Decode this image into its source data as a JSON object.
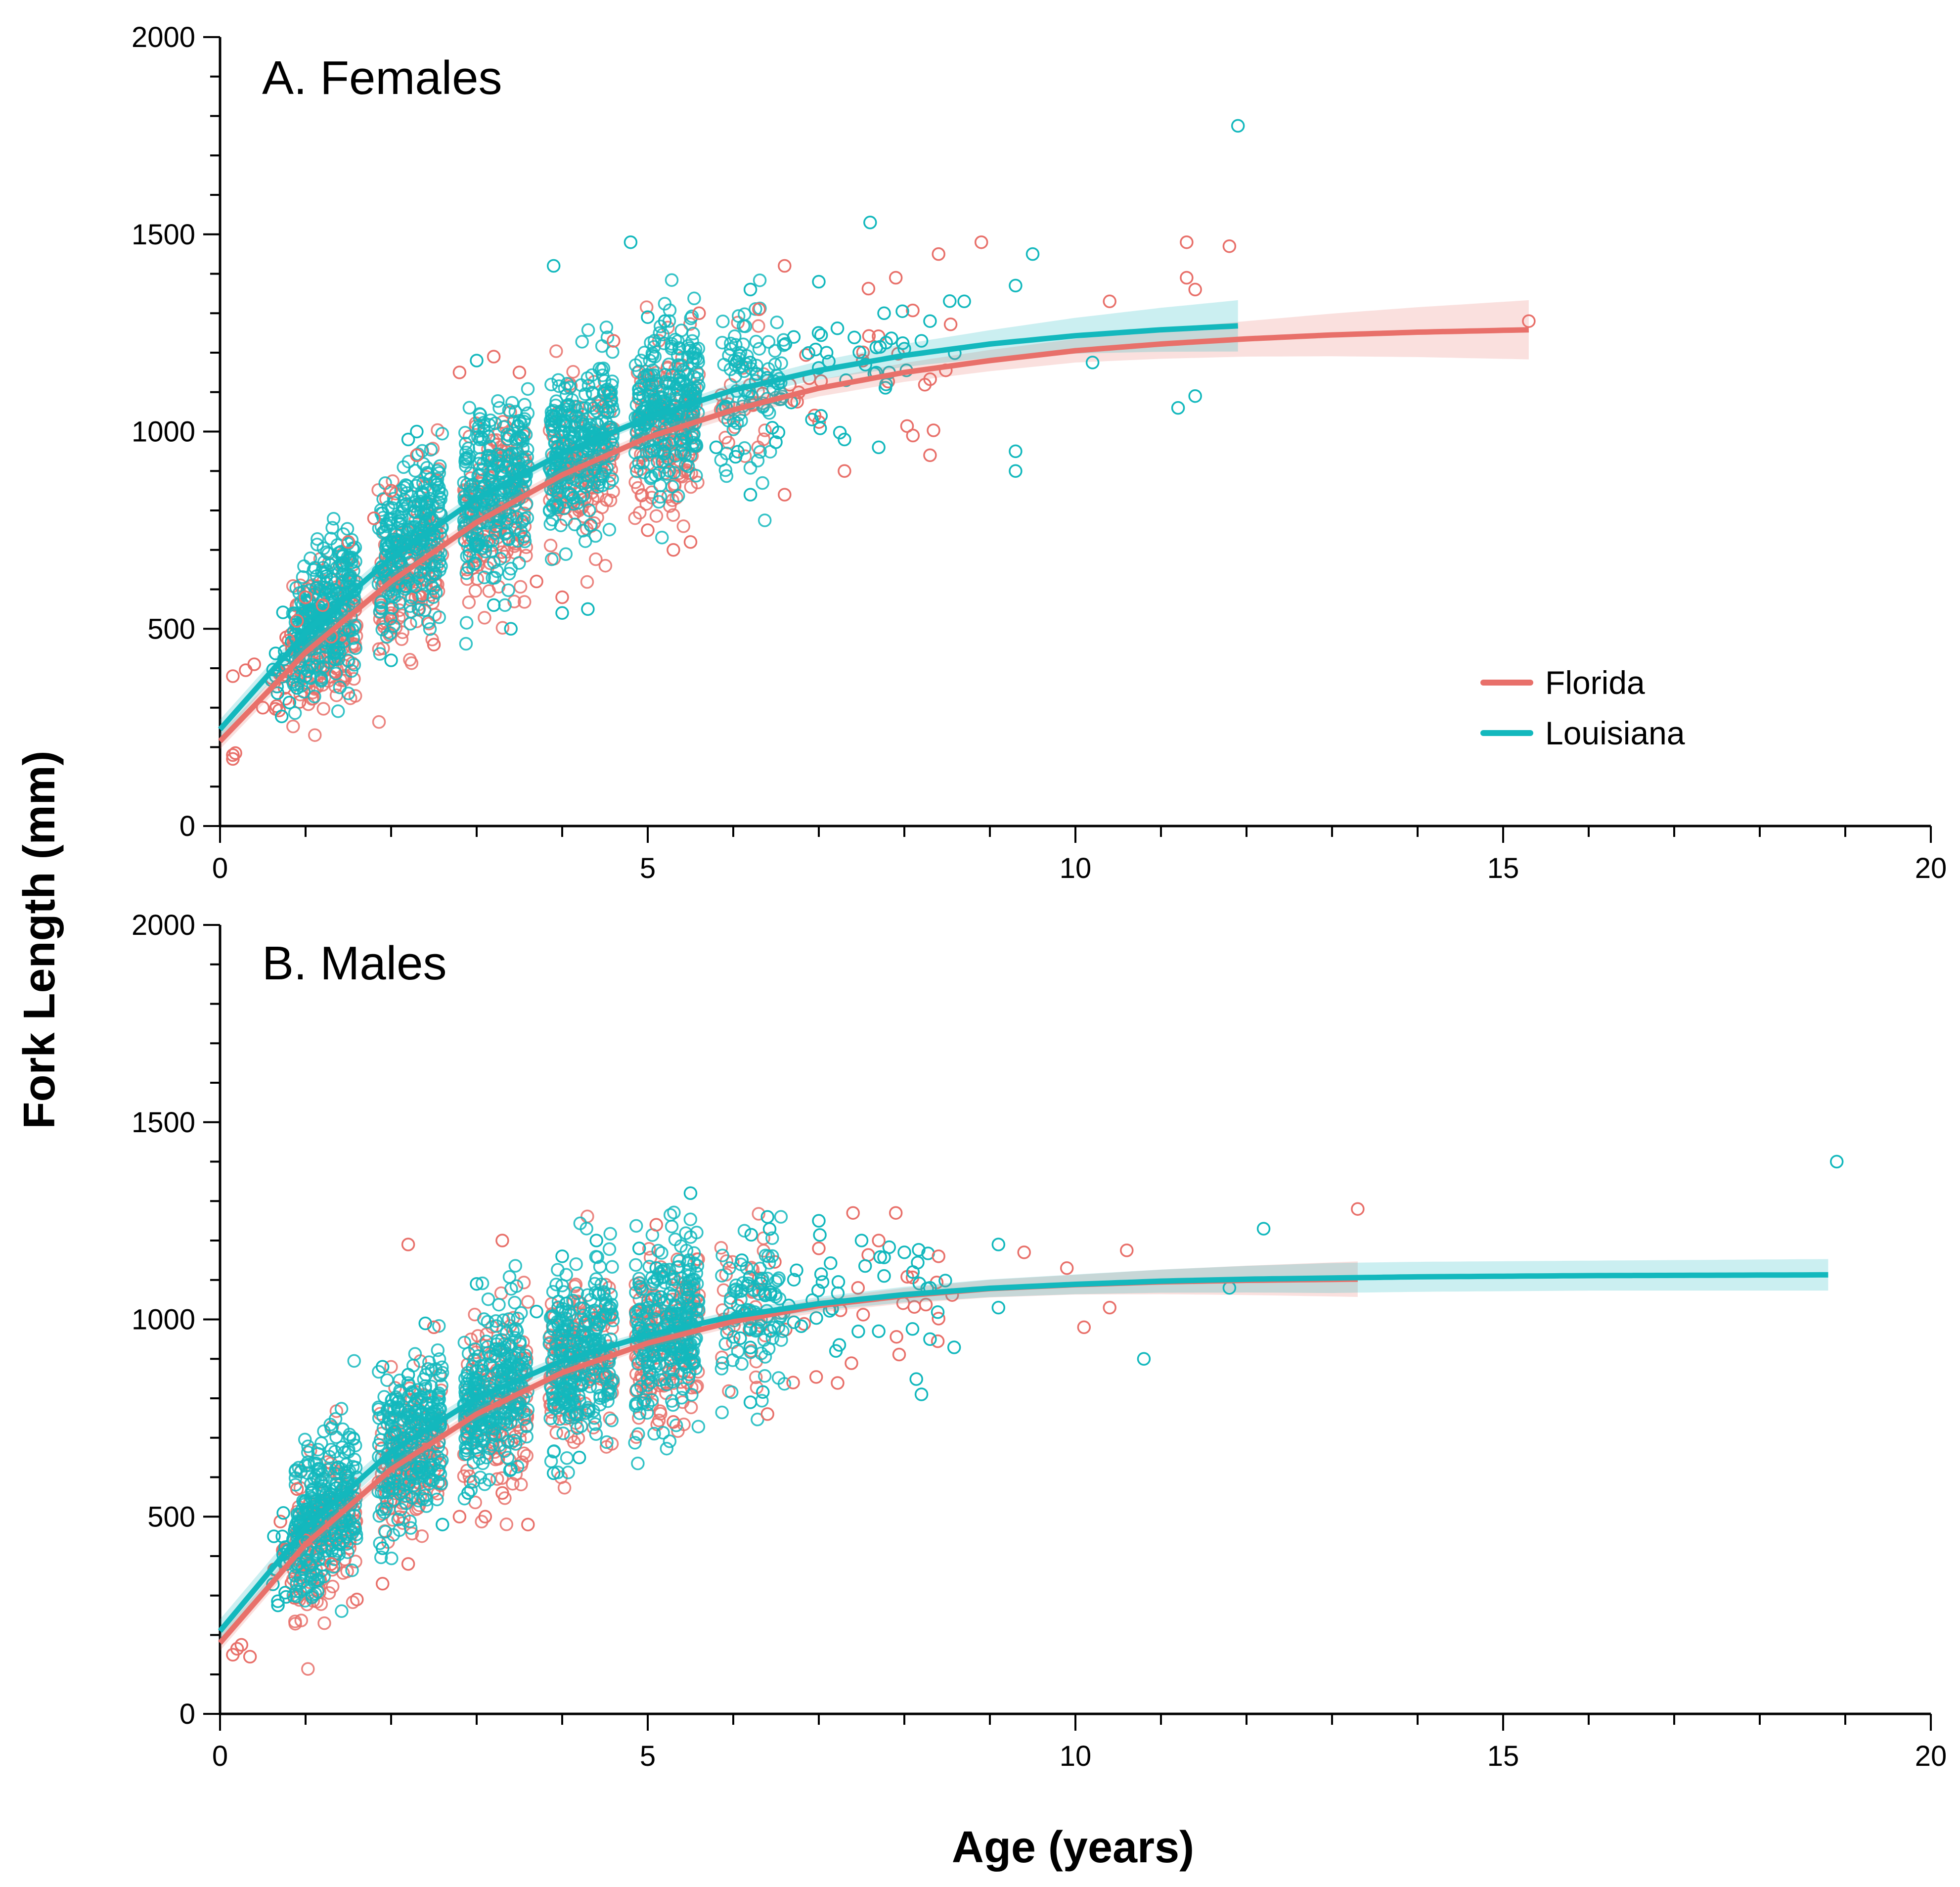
{
  "figure": {
    "ylabel": "Fork Length (mm)",
    "xlabel": "Age (years)"
  },
  "colors": {
    "Florida": "#e8706a",
    "Louisiana": "#13b8bd"
  },
  "legend": {
    "position": "right",
    "entries": [
      {
        "name": "Florida",
        "color": "#e8706a"
      },
      {
        "name": "Louisiana",
        "color": "#13b8bd"
      }
    ]
  },
  "chart_data": [
    {
      "type": "scatter",
      "title": "A. Females",
      "xlim": [
        0,
        20
      ],
      "ylim": [
        0,
        2000
      ],
      "xticks": [
        0,
        5,
        10,
        15,
        20
      ],
      "yticks": [
        0,
        500,
        1000,
        1500,
        2000
      ],
      "series": [
        {
          "name": "Florida",
          "fit": {
            "model": "von Bertalanffy",
            "curve": [
              [
                0,
                215
              ],
              [
                1,
                440
              ],
              [
                2,
                620
              ],
              [
                3,
                770
              ],
              [
                4,
                890
              ],
              [
                5,
                985
              ],
              [
                6,
                1055
              ],
              [
                7,
                1110
              ],
              [
                8,
                1150
              ],
              [
                9,
                1180
              ],
              [
                10,
                1205
              ],
              [
                11,
                1222
              ],
              [
                12,
                1235
              ],
              [
                13,
                1245
              ],
              [
                14,
                1252
              ],
              [
                15.3,
                1258
              ]
            ],
            "ci_halfwidth": [
              [
                0,
                20
              ],
              [
                5,
                15
              ],
              [
                10,
                30
              ],
              [
                12,
                45
              ],
              [
                15.3,
                75
              ]
            ]
          },
          "points": [
            [
              0.15,
              170
            ],
            [
              0.15,
              180
            ],
            [
              0.18,
              185
            ],
            [
              0.15,
              380
            ],
            [
              0.3,
              395
            ],
            [
              0.4,
              410
            ],
            [
              0.5,
              300
            ],
            [
              0.8,
              470
            ],
            [
              0.9,
              520
            ],
            [
              1.0,
              580
            ],
            [
              1.2,
              560
            ],
            [
              1.3,
              480
            ],
            [
              1.5,
              720
            ],
            [
              1.8,
              780
            ],
            [
              2.0,
              850
            ],
            [
              2.3,
              940
            ],
            [
              2.5,
              460
            ],
            [
              2.8,
              1150
            ],
            [
              3.2,
              1190
            ],
            [
              3.5,
              1150
            ],
            [
              3.7,
              620
            ],
            [
              4.0,
              580
            ],
            [
              4.6,
              1230
            ],
            [
              5.0,
              750
            ],
            [
              5.3,
              700
            ],
            [
              5.5,
              720
            ],
            [
              5.6,
              1300
            ],
            [
              6.3,
              1310
            ],
            [
              6.6,
              1420
            ],
            [
              6.6,
              840
            ],
            [
              7.3,
              900
            ],
            [
              7.9,
              1390
            ],
            [
              8.1,
              990
            ],
            [
              8.3,
              940
            ],
            [
              8.4,
              1450
            ],
            [
              8.9,
              1480
            ],
            [
              10.4,
              1330
            ],
            [
              11.3,
              1480
            ],
            [
              11.3,
              1390
            ],
            [
              11.4,
              1360
            ],
            [
              11.8,
              1470
            ],
            [
              15.3,
              1280
            ]
          ]
        },
        {
          "name": "Louisiana",
          "fit": {
            "model": "von Bertalanffy",
            "curve": [
              [
                0,
                245
              ],
              [
                1,
                490
              ],
              [
                2,
                680
              ],
              [
                3,
                830
              ],
              [
                4,
                945
              ],
              [
                5,
                1035
              ],
              [
                6,
                1105
              ],
              [
                7,
                1155
              ],
              [
                8,
                1193
              ],
              [
                9,
                1222
              ],
              [
                10,
                1243
              ],
              [
                11,
                1258
              ],
              [
                11.9,
                1268
              ]
            ],
            "ci_halfwidth": [
              [
                0,
                25
              ],
              [
                5,
                12
              ],
              [
                9,
                35
              ],
              [
                11.9,
                65
              ]
            ]
          },
          "points": [
            [
              0.9,
              350
            ],
            [
              1.0,
              380
            ],
            [
              2.0,
              420
            ],
            [
              2.2,
              980
            ],
            [
              2.3,
              1000
            ],
            [
              3.0,
              1180
            ],
            [
              3.2,
              560
            ],
            [
              3.4,
              500
            ],
            [
              3.9,
              1420
            ],
            [
              4.0,
              540
            ],
            [
              4.3,
              550
            ],
            [
              4.8,
              1480
            ],
            [
              5.0,
              1290
            ],
            [
              5.2,
              1280
            ],
            [
              5.8,
              960
            ],
            [
              6.2,
              1360
            ],
            [
              6.2,
              840
            ],
            [
              7.0,
              1380
            ],
            [
              7.3,
              980
            ],
            [
              7.6,
              1530
            ],
            [
              7.7,
              960
            ],
            [
              8.0,
              1210
            ],
            [
              8.2,
              1230
            ],
            [
              8.3,
              1280
            ],
            [
              8.7,
              1330
            ],
            [
              9.3,
              1370
            ],
            [
              9.3,
              950
            ],
            [
              9.3,
              900
            ],
            [
              9.5,
              1450
            ],
            [
              10.2,
              1175
            ],
            [
              11.2,
              1060
            ],
            [
              11.4,
              1090
            ],
            [
              11.9,
              1775
            ]
          ]
        }
      ]
    },
    {
      "type": "scatter",
      "title": "B. Males",
      "xlim": [
        0,
        20
      ],
      "ylim": [
        0,
        2000
      ],
      "xticks": [
        0,
        5,
        10,
        15,
        20
      ],
      "yticks": [
        0,
        500,
        1000,
        1500,
        2000
      ],
      "series": [
        {
          "name": "Florida",
          "fit": {
            "model": "von Bertalanffy",
            "curve": [
              [
                0,
                180
              ],
              [
                1,
                430
              ],
              [
                2,
                620
              ],
              [
                3,
                760
              ],
              [
                4,
                865
              ],
              [
                5,
                940
              ],
              [
                6,
                995
              ],
              [
                7,
                1035
              ],
              [
                8,
                1060
              ],
              [
                9,
                1078
              ],
              [
                10,
                1088
              ],
              [
                11,
                1095
              ],
              [
                12,
                1099
              ],
              [
                13.3,
                1102
              ]
            ],
            "ci_halfwidth": [
              [
                0,
                20
              ],
              [
                5,
                12
              ],
              [
                10,
                25
              ],
              [
                13.3,
                45
              ]
            ]
          },
          "points": [
            [
              0.15,
              150
            ],
            [
              0.2,
              165
            ],
            [
              0.25,
              175
            ],
            [
              0.35,
              145
            ],
            [
              0.9,
              570
            ],
            [
              1.0,
              440
            ],
            [
              1.3,
              380
            ],
            [
              1.6,
              290
            ],
            [
              1.9,
              330
            ],
            [
              2.2,
              380
            ],
            [
              2.2,
              1190
            ],
            [
              2.5,
              980
            ],
            [
              2.8,
              500
            ],
            [
              3.1,
              500
            ],
            [
              3.3,
              560
            ],
            [
              3.3,
              1200
            ],
            [
              3.6,
              480
            ],
            [
              5.1,
              1240
            ],
            [
              5.3,
              740
            ],
            [
              6.4,
              760
            ],
            [
              6.7,
              840
            ],
            [
              7.0,
              1180
            ],
            [
              7.4,
              1270
            ],
            [
              7.7,
              1200
            ],
            [
              7.9,
              1270
            ],
            [
              8.4,
              1160
            ],
            [
              9.4,
              1170
            ],
            [
              9.9,
              1130
            ],
            [
              10.1,
              980
            ],
            [
              10.4,
              1030
            ],
            [
              10.6,
              1175
            ],
            [
              13.3,
              1280
            ]
          ]
        },
        {
          "name": "Louisiana",
          "fit": {
            "model": "von Bertalanffy",
            "curve": [
              [
                0,
                210
              ],
              [
                1,
                470
              ],
              [
                2,
                665
              ],
              [
                3,
                800
              ],
              [
                4,
                895
              ],
              [
                5,
                960
              ],
              [
                6,
                1008
              ],
              [
                7,
                1040
              ],
              [
                8,
                1063
              ],
              [
                9,
                1079
              ],
              [
                10,
                1089
              ],
              [
                11,
                1097
              ],
              [
                12,
                1102
              ],
              [
                14,
                1108
              ],
              [
                16,
                1111
              ],
              [
                18.8,
                1113
              ]
            ],
            "ci_halfwidth": [
              [
                0,
                30
              ],
              [
                5,
                12
              ],
              [
                10,
                25
              ],
              [
                13,
                38
              ],
              [
                16,
                38
              ],
              [
                18.8,
                40
              ]
            ]
          },
          "points": [
            [
              0.9,
              380
            ],
            [
              1.0,
              540
            ],
            [
              1.9,
              420
            ],
            [
              1.9,
              880
            ],
            [
              2.2,
              860
            ],
            [
              2.4,
              990
            ],
            [
              2.6,
              480
            ],
            [
              2.9,
              560
            ],
            [
              3.0,
              1090
            ],
            [
              3.4,
              620
            ],
            [
              3.7,
              1020
            ],
            [
              3.9,
              610
            ],
            [
              4.0,
              1160
            ],
            [
              4.2,
              650
            ],
            [
              4.4,
              1200
            ],
            [
              4.9,
              1180
            ],
            [
              5.1,
              1130
            ],
            [
              5.5,
              1320
            ],
            [
              6.1,
              1150
            ],
            [
              6.2,
              790
            ],
            [
              6.4,
              1260
            ],
            [
              7.0,
              1250
            ],
            [
              7.2,
              920
            ],
            [
              7.5,
              1200
            ],
            [
              7.7,
              970
            ],
            [
              8.0,
              1170
            ],
            [
              8.1,
              1120
            ],
            [
              8.2,
              810
            ],
            [
              8.3,
              950
            ],
            [
              8.3,
              1080
            ],
            [
              9.1,
              1190
            ],
            [
              9.1,
              1030
            ],
            [
              10.8,
              900
            ],
            [
              11.8,
              1080
            ],
            [
              12.2,
              1230
            ],
            [
              18.9,
              1400
            ]
          ]
        }
      ]
    }
  ]
}
